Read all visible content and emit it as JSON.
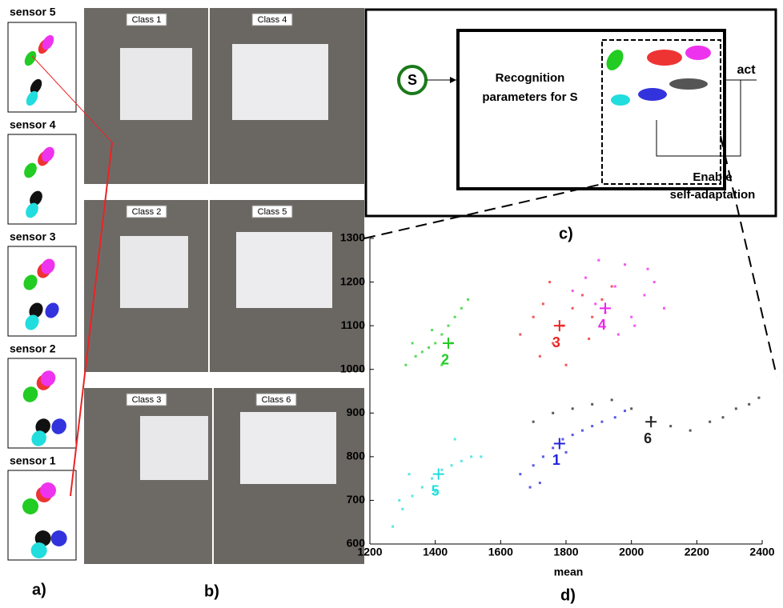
{
  "panels": {
    "a": "a)",
    "b": "b)",
    "c": "c)",
    "d": "d)"
  },
  "sensors": [
    "sensor 5",
    "sensor 4",
    "sensor 3",
    "sensor 2",
    "sensor 1"
  ],
  "photos": [
    "Class 1",
    "Class 4",
    "Class 2",
    "Class 5",
    "Class 3",
    "Class 6"
  ],
  "diagram": {
    "node": "S",
    "box_lines": [
      "Recognition",
      "parameters for S"
    ],
    "output": "act",
    "feedback_lines": [
      "Enable",
      "self-adaptation"
    ]
  },
  "chart_data": {
    "type": "scatter",
    "xlabel": "mean",
    "xlim": [
      1200,
      2400
    ],
    "ylim": [
      600,
      1300
    ],
    "xticks": [
      1200,
      1400,
      1600,
      1800,
      2000,
      2200,
      2400
    ],
    "yticks": [
      600,
      700,
      800,
      900,
      1000,
      1100,
      1200,
      1300
    ],
    "series": [
      {
        "name": "1",
        "color": "#2222dd",
        "x": [
          1660,
          1700,
          1730,
          1760,
          1790,
          1820,
          1850,
          1880,
          1910,
          1950,
          1980,
          1720,
          1800,
          1690
        ],
        "y": [
          760,
          780,
          800,
          820,
          840,
          850,
          860,
          870,
          880,
          890,
          905,
          740,
          810,
          730
        ],
        "center": {
          "x": 1780,
          "y": 830
        }
      },
      {
        "name": "2",
        "color": "#22cc22",
        "x": [
          1310,
          1340,
          1360,
          1380,
          1400,
          1420,
          1440,
          1460,
          1480,
          1500,
          1330,
          1450,
          1390,
          1420
        ],
        "y": [
          1010,
          1030,
          1040,
          1050,
          1060,
          1080,
          1100,
          1120,
          1140,
          1160,
          1060,
          1060,
          1090,
          1010
        ],
        "center": {
          "x": 1440,
          "y": 1060
        }
      },
      {
        "name": "3",
        "color": "#ee2222",
        "x": [
          1660,
          1700,
          1730,
          1760,
          1790,
          1820,
          1850,
          1880,
          1910,
          1940,
          1720,
          1800,
          1870,
          1750
        ],
        "y": [
          1080,
          1120,
          1150,
          1060,
          1100,
          1140,
          1170,
          1120,
          1160,
          1190,
          1030,
          1010,
          1070,
          1200
        ],
        "center": {
          "x": 1780,
          "y": 1100
        }
      },
      {
        "name": "4",
        "color": "#ee22ee",
        "x": [
          1820,
          1860,
          1890,
          1920,
          1950,
          1980,
          2010,
          2040,
          2070,
          2100,
          1900,
          1960,
          2050,
          2000
        ],
        "y": [
          1180,
          1210,
          1150,
          1130,
          1190,
          1240,
          1100,
          1170,
          1200,
          1140,
          1250,
          1080,
          1230,
          1120
        ],
        "center": {
          "x": 1920,
          "y": 1140
        }
      },
      {
        "name": "5",
        "color": "#22dddd",
        "x": [
          1270,
          1300,
          1330,
          1360,
          1390,
          1420,
          1450,
          1480,
          1510,
          1540,
          1320,
          1400,
          1460,
          1290
        ],
        "y": [
          640,
          680,
          710,
          730,
          750,
          770,
          780,
          790,
          800,
          800,
          760,
          720,
          840,
          700
        ],
        "center": {
          "x": 1410,
          "y": 760
        }
      },
      {
        "name": "6",
        "color": "#222222",
        "x": [
          1700,
          1760,
          1820,
          1880,
          1940,
          2000,
          2060,
          2120,
          2180,
          2240,
          2280,
          2320,
          2360,
          2390
        ],
        "y": [
          880,
          900,
          910,
          920,
          930,
          910,
          890,
          870,
          860,
          880,
          890,
          910,
          920,
          935
        ],
        "center": {
          "x": 2060,
          "y": 880
        }
      }
    ]
  }
}
